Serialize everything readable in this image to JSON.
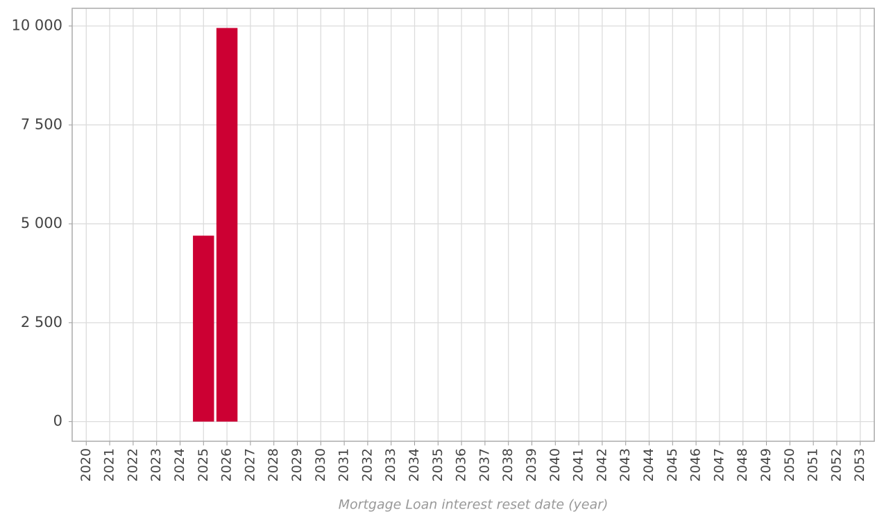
{
  "chart_data": {
    "type": "bar",
    "x_label": "Mortgage Loan interest reset date (year)",
    "categories": [
      "2020",
      "2021",
      "2022",
      "2023",
      "2024",
      "2025",
      "2026",
      "2027",
      "2028",
      "2029",
      "2030",
      "2031",
      "2032",
      "2033",
      "2034",
      "2035",
      "2036",
      "2037",
      "2038",
      "2039",
      "2040",
      "2041",
      "2042",
      "2043",
      "2044",
      "2045",
      "2046",
      "2047",
      "2048",
      "2049",
      "2050",
      "2051",
      "2052",
      "2053"
    ],
    "values": [
      0,
      0,
      0,
      0,
      0,
      4700,
      9950,
      0,
      0,
      0,
      0,
      0,
      0,
      0,
      0,
      0,
      0,
      0,
      0,
      0,
      0,
      0,
      0,
      0,
      0,
      0,
      0,
      0,
      0,
      0,
      0,
      0,
      0,
      0
    ],
    "color": "#cc0033",
    "ylim": [
      -497,
      10447
    ],
    "yticks": [
      0,
      {
        "value": 2500,
        "label": "2 500"
      },
      {
        "value": 5000,
        "label": "5 000"
      },
      {
        "value": 7500,
        "label": "7 500"
      },
      {
        "value": 10000,
        "label": "10 000"
      }
    ],
    "grid": true
  }
}
